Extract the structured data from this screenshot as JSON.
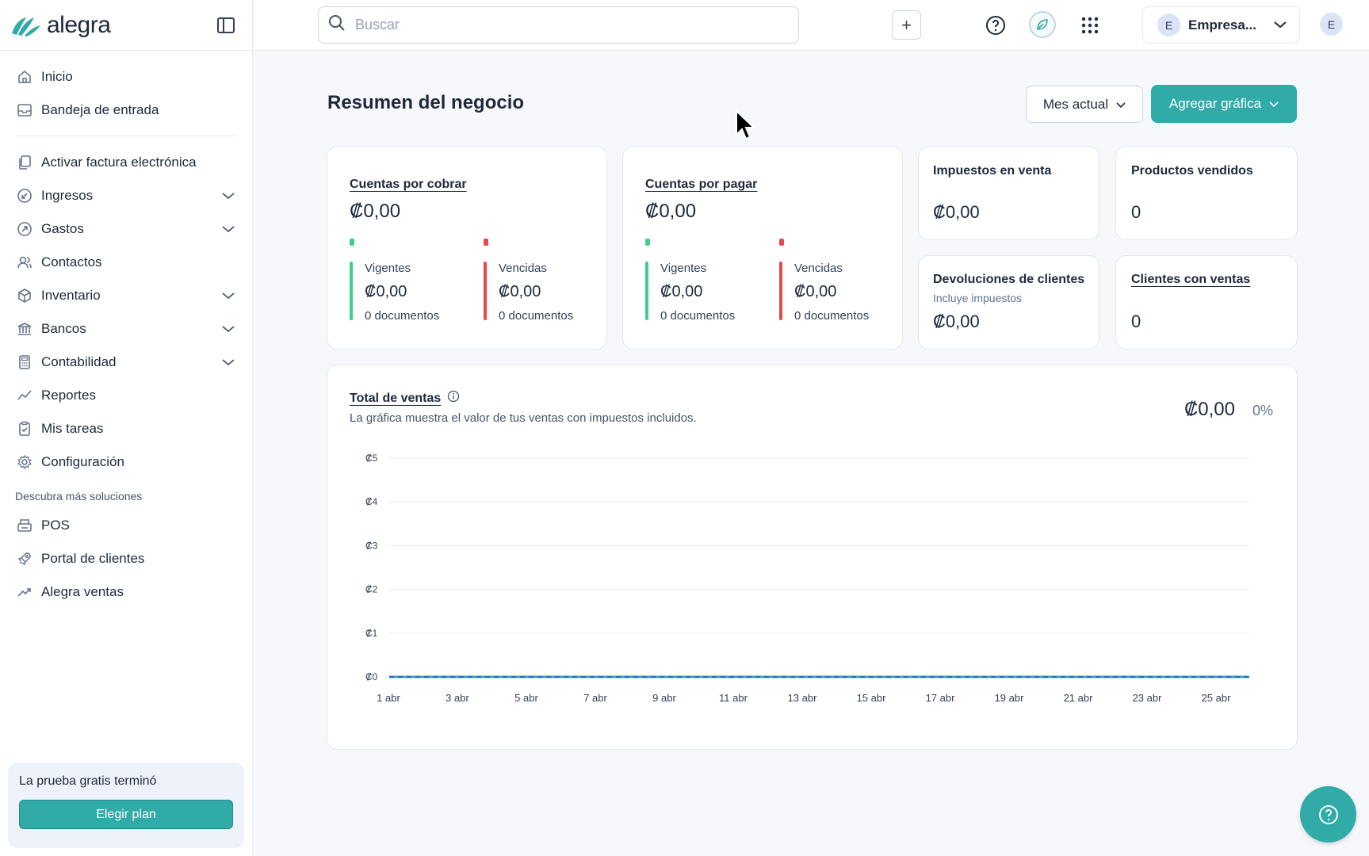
{
  "app": {
    "logo_text": "alegra"
  },
  "sidebar": {
    "items_top": [
      {
        "label": "Inicio",
        "icon": "home-icon"
      },
      {
        "label": "Bandeja de entrada",
        "icon": "inbox-icon"
      }
    ],
    "items_main": [
      {
        "label": "Activar factura electrónica",
        "icon": "document-copy-icon",
        "has_chevron": false
      },
      {
        "label": "Ingresos",
        "icon": "income-icon",
        "has_chevron": true
      },
      {
        "label": "Gastos",
        "icon": "expense-icon",
        "has_chevron": true
      },
      {
        "label": "Contactos",
        "icon": "contacts-icon",
        "has_chevron": false
      },
      {
        "label": "Inventario",
        "icon": "box-icon",
        "has_chevron": true
      },
      {
        "label": "Bancos",
        "icon": "bank-icon",
        "has_chevron": true
      },
      {
        "label": "Contabilidad",
        "icon": "calculator-icon",
        "has_chevron": true
      },
      {
        "label": "Reportes",
        "icon": "chart-line-icon",
        "has_chevron": false
      },
      {
        "label": "Mis tareas",
        "icon": "clipboard-icon",
        "has_chevron": false
      },
      {
        "label": "Configuración",
        "icon": "gear-icon",
        "has_chevron": false
      }
    ],
    "section_label": "Descubra más soluciones",
    "items_solutions": [
      {
        "label": "POS",
        "icon": "pos-printer-icon"
      },
      {
        "label": "Portal de clientes",
        "icon": "rocket-icon"
      },
      {
        "label": "Alegra ventas",
        "icon": "trend-up-icon"
      }
    ],
    "trial": {
      "text": "La prueba gratis terminó",
      "button": "Elegir plan"
    }
  },
  "topbar": {
    "search_placeholder": "Buscar",
    "plus_label": "+",
    "company_initial": "E",
    "company_name": "Empresa...",
    "user_initial": "E"
  },
  "main": {
    "title": "Resumen del negocio",
    "period": "Mes actual",
    "add_chart": "Agregar gráfica",
    "receivable": {
      "title": "Cuentas por cobrar",
      "total": "₡0,00",
      "current": {
        "label": "Vigentes",
        "value": "₡0,00",
        "docs": "0 documentos"
      },
      "overdue": {
        "label": "Vencidas",
        "value": "₡0,00",
        "docs": "0 documentos"
      }
    },
    "payable": {
      "title": "Cuentas por pagar",
      "total": "₡0,00",
      "current": {
        "label": "Vigentes",
        "value": "₡0,00",
        "docs": "0 documentos"
      },
      "overdue": {
        "label": "Vencidas",
        "value": "₡0,00",
        "docs": "0 documentos"
      }
    },
    "sales_tax": {
      "title": "Impuestos en venta",
      "value": "₡0,00"
    },
    "products_sold": {
      "title": "Productos vendidos",
      "value": "0"
    },
    "returns": {
      "title": "Devoluciones de clientes",
      "subtitle": "Incluye impuestos",
      "value": "₡0,00"
    },
    "clients_sales": {
      "title": "Clientes con ventas",
      "value": "0"
    }
  },
  "colors": {
    "accent": "#30aba7",
    "current_green": "#3ecf8e",
    "overdue_red": "#e5484d"
  },
  "chart_data": {
    "type": "line",
    "title": "Total de ventas",
    "subtitle": "La gráfica muestra el valor de tus ventas con impuestos incluidos.",
    "total": "₡0,00",
    "change": "0%",
    "x_ticks": [
      "1 abr",
      "3 abr",
      "5 abr",
      "7 abr",
      "9 abr",
      "11 abr",
      "13 abr",
      "15 abr",
      "17 abr",
      "19 abr",
      "21 abr",
      "23 abr",
      "25 abr"
    ],
    "y_ticks": [
      "₡0",
      "₡1",
      "₡2",
      "₡3",
      "₡4",
      "₡5"
    ],
    "ylim": [
      0,
      5
    ],
    "grid": true,
    "series": [
      {
        "color": "#30aba7",
        "values": [
          0,
          0,
          0,
          0,
          0,
          0,
          0,
          0,
          0,
          0,
          0,
          0,
          0
        ]
      },
      {
        "color": "#3b5bdb",
        "values": [
          0,
          0,
          0,
          0,
          0,
          0,
          0,
          0,
          0,
          0,
          0,
          0,
          0
        ],
        "dashed": true
      }
    ]
  }
}
